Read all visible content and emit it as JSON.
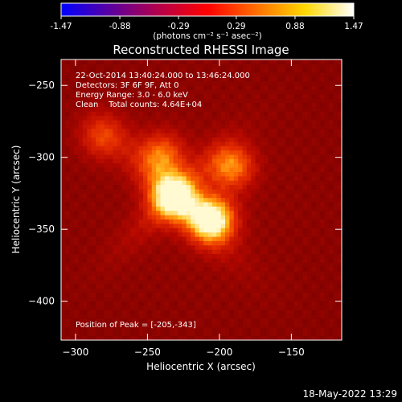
{
  "colorbar": {
    "tick_labels": [
      "-1.47",
      "-0.88",
      "-0.29",
      "0.29",
      "0.88",
      "1.47"
    ],
    "ticks": [
      -1.47,
      -0.88,
      -0.29,
      0.29,
      0.88,
      1.47
    ],
    "unit_label": "(photons cm⁻² s⁻¹ asec⁻²)",
    "stops": [
      "#0000ff",
      "#5a00a0",
      "#b4004a",
      "#ff0000",
      "#ff6e00",
      "#ffd800",
      "#ffffff"
    ]
  },
  "chart_data": {
    "type": "heatmap",
    "title": "Reconstructed RHESSI Image",
    "xlabel": "Heliocentric X (arcsec)",
    "ylabel": "Heliocentric Y (arcsec)",
    "xlim": [
      -310,
      -115
    ],
    "ylim": [
      -427,
      -232
    ],
    "xticks": [
      -300,
      -250,
      -200,
      -150
    ],
    "yticks": [
      -250,
      -300,
      -350,
      -400
    ],
    "xtick_labels": [
      "−300",
      "−250",
      "−200",
      "−150"
    ],
    "ytick_labels": [
      "−250",
      "−300",
      "−350",
      "−400"
    ],
    "colorscale_range": [
      -1.47,
      1.47
    ],
    "peak_position": [
      -205,
      -343
    ],
    "sources": [
      {
        "x": -205,
        "y": -343,
        "peak": 1.0
      },
      {
        "x": -232,
        "y": -327,
        "peak": 0.8
      },
      {
        "x": -191,
        "y": -306,
        "peak": 0.62
      },
      {
        "x": -240,
        "y": -298,
        "peak": 0.55
      },
      {
        "x": -282,
        "y": -285,
        "peak": 0.45
      }
    ],
    "annotations": {
      "time_range": "22-Oct-2014 13:40:24.000 to 13:46:24.000",
      "detectors": "Detectors: 3F 6F 9F, Att 0",
      "energy_range": "Energy Range: 3.0 - 6.0 keV",
      "method_line": "Clean    Total counts: 4.64E+04",
      "peak_position_text": "Position of Peak = [-205,-343]"
    }
  },
  "footer": {
    "date_stamp": "18-May-2022 13:29"
  }
}
